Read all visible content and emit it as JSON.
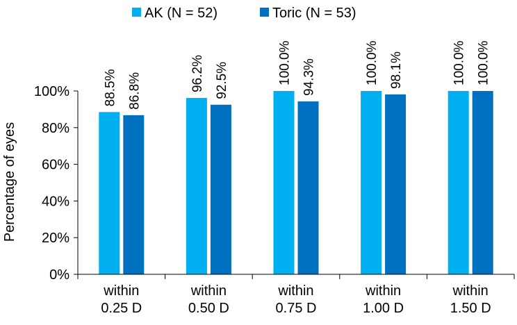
{
  "chart_data": {
    "type": "bar",
    "categories": [
      [
        "within",
        "0.25 D"
      ],
      [
        "within",
        "0.50 D"
      ],
      [
        "within",
        "0.75 D"
      ],
      [
        "within",
        "1.00 D"
      ],
      [
        "within",
        "1.50 D"
      ]
    ],
    "series": [
      {
        "name": "AK (N = 52)",
        "color": "#00b0f0",
        "values": [
          88.5,
          96.2,
          100.0,
          100.0,
          100.0
        ]
      },
      {
        "name": "Toric (N = 53)",
        "color": "#0070c0",
        "values": [
          86.8,
          92.5,
          94.3,
          98.1,
          100.0
        ]
      }
    ],
    "data_labels": [
      [
        "88.5%",
        "96.2%",
        "100.0%",
        "100.0%",
        "100.0%"
      ],
      [
        "86.8%",
        "92.5%",
        "94.3%",
        "98.1%",
        "100.0%"
      ]
    ],
    "ylabel": "Percentage of eyes",
    "ylim": [
      0,
      100
    ],
    "yticks": [
      0,
      20,
      40,
      60,
      80,
      100
    ],
    "ytick_labels": [
      "0%",
      "20%",
      "40%",
      "60%",
      "80%",
      "100%"
    ],
    "grid": false,
    "legend_position": "top-center"
  }
}
